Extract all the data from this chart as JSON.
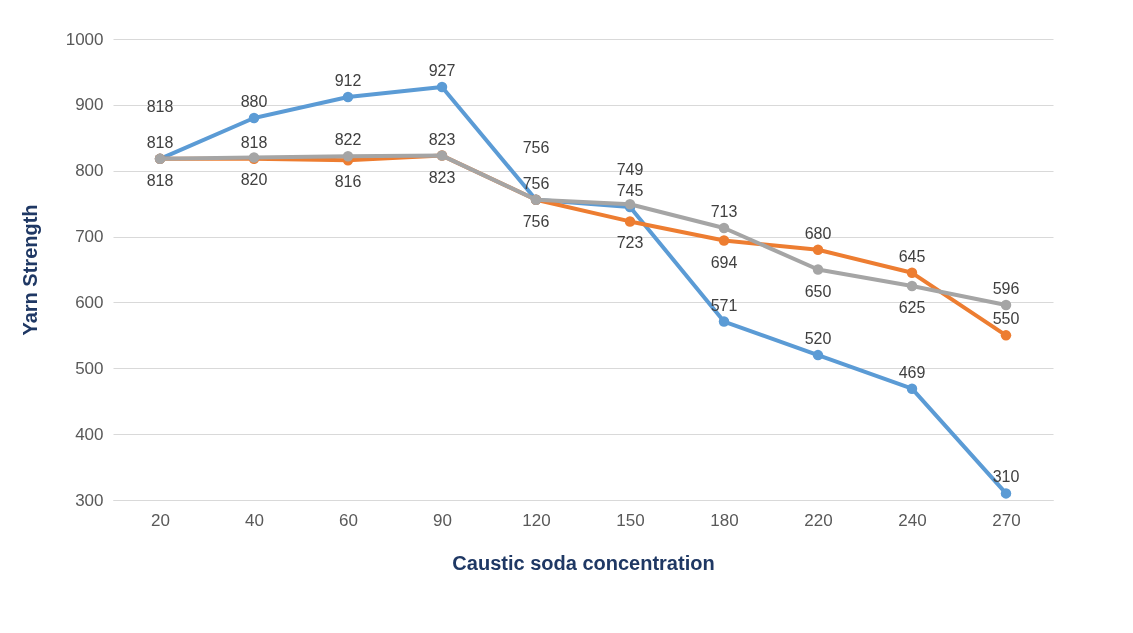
{
  "chart_data": {
    "type": "line",
    "xlabel": "Caustic soda concentration",
    "ylabel": "Yarn Strength",
    "categories": [
      "20",
      "40",
      "60",
      "90",
      "120",
      "150",
      "180",
      "220",
      "240",
      "270"
    ],
    "series": [
      {
        "color": "#5b9bd5",
        "values": [
          818,
          880,
          912,
          927,
          756,
          745,
          571,
          520,
          469,
          310
        ]
      },
      {
        "color": "#ed7d31",
        "values": [
          818,
          818,
          816,
          823,
          756,
          723,
          694,
          680,
          645,
          550
        ]
      },
      {
        "color": "#a5a5a5",
        "values": [
          818,
          820,
          822,
          823,
          756,
          749,
          713,
          650,
          625,
          596
        ]
      }
    ],
    "ylim": [
      300,
      1000
    ],
    "yticks": [
      300,
      400,
      500,
      600,
      700,
      800,
      900,
      1000
    ],
    "grid": "y",
    "legend": false,
    "marker": "circle",
    "data_labels": true
  }
}
